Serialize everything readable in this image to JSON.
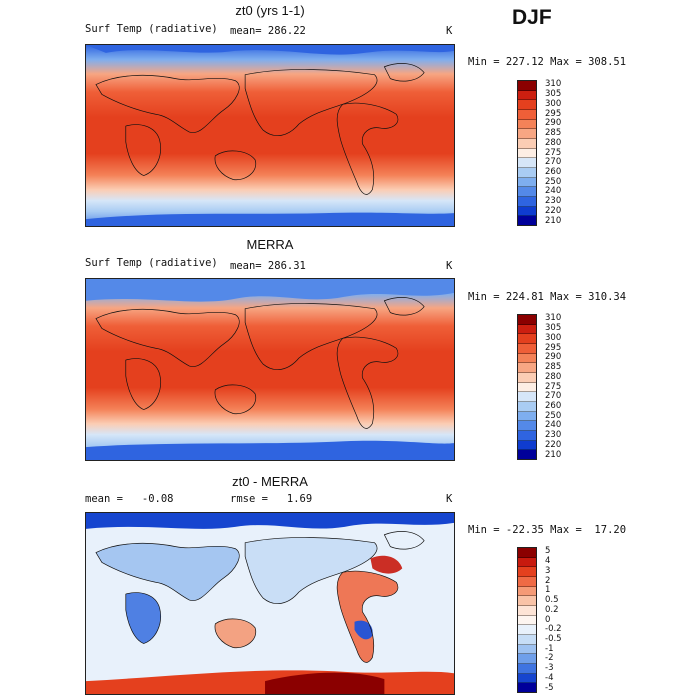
{
  "season": "DJF",
  "panels": [
    {
      "title": "zt0 (yrs 1-1)",
      "variable": "Surf Temp (radiative)",
      "mean_label": "mean= 286.22",
      "units": "K",
      "minmax": "Min = 227.12 Max = 308.51",
      "colorbar": {
        "labels": [
          "310",
          "305",
          "300",
          "295",
          "290",
          "285",
          "280",
          "275",
          "270",
          "260",
          "250",
          "240",
          "230",
          "220",
          "210"
        ],
        "colors": [
          "#8b0000",
          "#cc1f10",
          "#e4401e",
          "#ef5f38",
          "#f48258",
          "#f7a683",
          "#fbcdb4",
          "#fdeee4",
          "#d6e6f8",
          "#a9ccf3",
          "#7eaeef",
          "#5489e8",
          "#2f64e0",
          "#0f3ccf",
          "#00009a"
        ]
      }
    },
    {
      "title": "MERRA",
      "variable": "Surf Temp (radiative)",
      "mean_label": "mean= 286.31",
      "units": "K",
      "minmax": "Min = 224.81 Max = 310.34",
      "colorbar": {
        "labels": [
          "310",
          "305",
          "300",
          "295",
          "290",
          "285",
          "280",
          "275",
          "270",
          "260",
          "250",
          "240",
          "230",
          "220",
          "210"
        ],
        "colors": [
          "#8b0000",
          "#cc1f10",
          "#e4401e",
          "#ef5f38",
          "#f48258",
          "#f7a683",
          "#fbcdb4",
          "#fdeee4",
          "#d6e6f8",
          "#a9ccf3",
          "#7eaeef",
          "#5489e8",
          "#2f64e0",
          "#0f3ccf",
          "#00009a"
        ]
      }
    },
    {
      "title": "zt0 - MERRA",
      "mean_label": "mean =   -0.08",
      "rmse_label": "rmse =   1.69",
      "units": "K",
      "minmax": "Min = -22.35 Max =  17.20",
      "colorbar": {
        "labels": [
          "5",
          "4",
          "3",
          "2",
          "1",
          "0.5",
          "0.2",
          "0",
          "-0.2",
          "-0.5",
          "-1",
          "-2",
          "-3",
          "-4",
          "-5"
        ],
        "colors": [
          "#8b0000",
          "#c81a0e",
          "#e4401e",
          "#ef6a45",
          "#f59a76",
          "#f9c3a7",
          "#fde4d6",
          "#fdf5f0",
          "#e8f1fb",
          "#c6ddf6",
          "#9ec2f1",
          "#6f9fea",
          "#3f74e1",
          "#1645cf",
          "#00009a"
        ]
      }
    }
  ]
}
